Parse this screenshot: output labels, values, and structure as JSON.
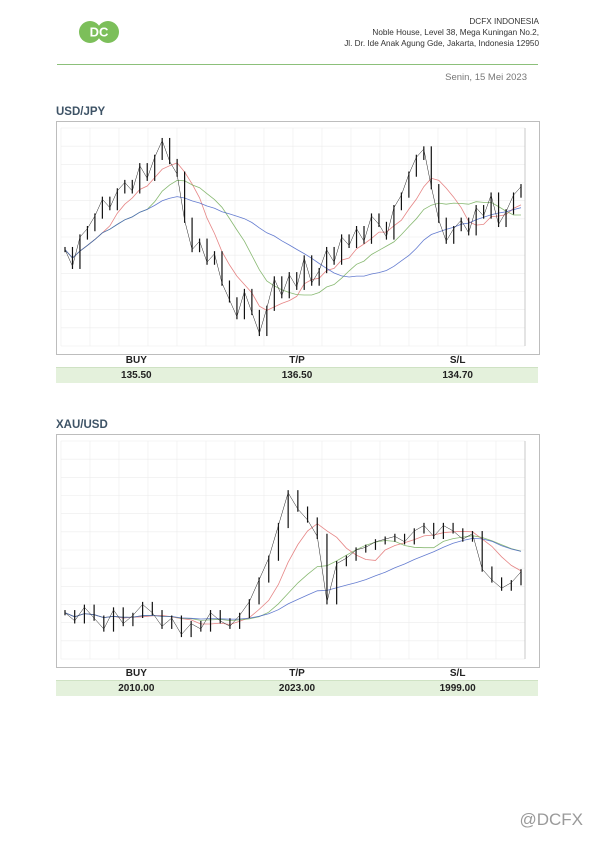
{
  "header": {
    "logo_text": "DC",
    "company_name": "DCFX INDONESIA",
    "address_line1": "Noble House, Level 38, Mega Kuningan No.2,",
    "address_line2": "Jl. Dr. Ide Anak Agung Gde, Jakarta, Indonesia 12950",
    "date": "Senin, 15 Mei 2023"
  },
  "colors": {
    "brand_green": "#7cbf5a",
    "band_green": "#e4f1dc",
    "title_blue": "#3e5366"
  },
  "sections": [
    {
      "title": "USD/JPY",
      "labels": {
        "buy": "BUY",
        "tp": "T/P",
        "sl": "S/L"
      },
      "values": {
        "buy": "135.50",
        "tp": "136.50",
        "sl": "134.70"
      }
    },
    {
      "title": "XAU/USD",
      "labels": {
        "buy": "BUY",
        "tp": "T/P",
        "sl": "S/L"
      },
      "values": {
        "buy": "2010.00",
        "tp": "2023.00",
        "sl": "1999.00"
      }
    }
  ],
  "chart_data": [
    {
      "type": "line",
      "title": "USD/JPY",
      "y": [
        134.6,
        134.2,
        134.9,
        135.1,
        135.4,
        135.8,
        135.6,
        136.0,
        136.2,
        136.0,
        136.6,
        136.3,
        136.8,
        137.2,
        136.7,
        136.4,
        135.3,
        134.6,
        134.8,
        134.3,
        134.5,
        133.8,
        133.4,
        133.0,
        133.6,
        133.1,
        132.6,
        133.2,
        133.9,
        133.5,
        134.0,
        133.7,
        134.4,
        133.8,
        134.1,
        134.6,
        134.3,
        134.9,
        134.7,
        135.1,
        134.8,
        135.4,
        135.2,
        134.9,
        135.6,
        135.9,
        136.4,
        136.8,
        137.0,
        136.1,
        135.3,
        134.8,
        135.1,
        135.3,
        135.0,
        135.6,
        135.4,
        135.9,
        135.2,
        135.5,
        135.9,
        136.1
      ],
      "ylim": [
        132.3,
        137.5
      ]
    },
    {
      "type": "line",
      "title": "XAU/USD",
      "y": [
        1992,
        1989,
        1994,
        1990,
        1986,
        1993,
        1988,
        1991,
        1995,
        1992,
        1987,
        1990,
        1984,
        1988,
        1986,
        1992,
        1989,
        1987,
        1991,
        1996,
        2004,
        2012,
        2024,
        2036,
        2030,
        2026,
        2020,
        1996,
        2010,
        2012,
        2015,
        2016,
        2018,
        2019,
        2020,
        2018,
        2022,
        2024,
        2020,
        2024,
        2022,
        2019,
        2021,
        2008,
        2004,
        2001,
        2003,
        2007
      ],
      "ylim": [
        1975,
        2055
      ]
    }
  ]
}
